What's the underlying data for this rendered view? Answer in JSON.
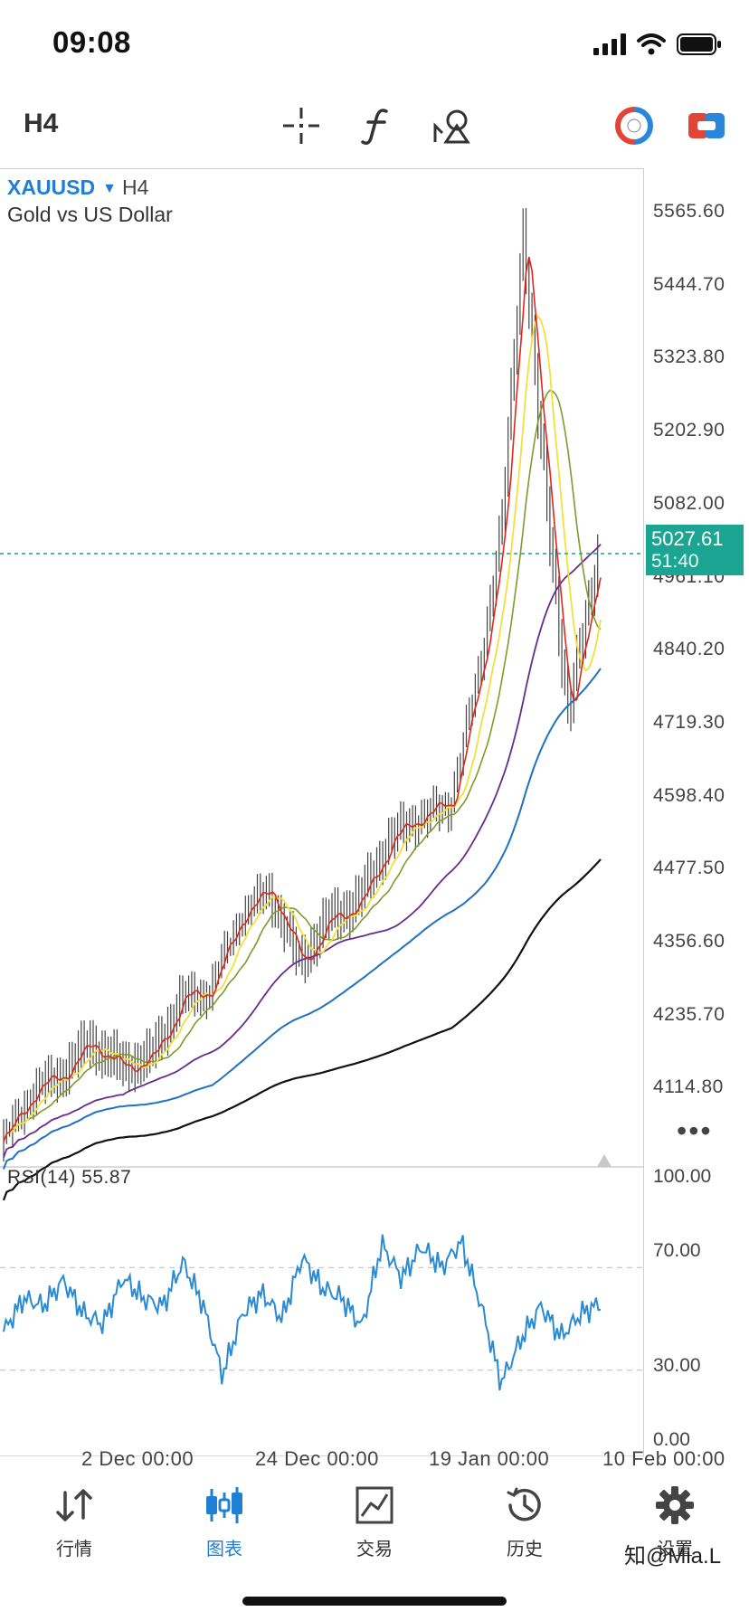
{
  "status_bar": {
    "time": "09:08",
    "icons": [
      "cellular-signal-icon",
      "wifi-icon",
      "battery-icon"
    ]
  },
  "toolbar": {
    "timeframe": "H4",
    "tools": [
      "crosshair-icon",
      "indicator-function-icon",
      "drawing-objects-icon"
    ],
    "right": [
      "one-click-trading-icon",
      "account-switch-icon"
    ]
  },
  "chart": {
    "symbol": "XAUUSD",
    "timeframe": "H4",
    "description": "Gold vs US Dollar",
    "price_axis": [
      "5565.60",
      "5444.70",
      "5323.80",
      "5202.90",
      "5082.00",
      "4961.10",
      "4840.20",
      "4719.30",
      "4598.40",
      "4477.50",
      "4356.60",
      "4235.70",
      "4114.80"
    ],
    "current_price": "5027.61",
    "bar_timer": "51:40",
    "more_label": "•••",
    "rsi": {
      "label": "RSI(14)",
      "value": "55.87",
      "ticks": [
        "100.00",
        "70.00",
        "30.00",
        "0.00"
      ],
      "levels": [
        70,
        30
      ]
    },
    "time_axis": [
      "2 Dec 00:00",
      "24 Dec 00:00",
      "19 Jan 00:00",
      "10 Feb 00:00"
    ],
    "colors": {
      "candle": "#444444",
      "ma_fast": "#e0261b",
      "ma_yellow": "#f2e03a",
      "ma_olive": "#7d9c2a",
      "ma_purple": "#6a2a8c",
      "ma_blue": "#1f72c0",
      "ma_black": "#111111",
      "rsi": "#2a8ad4",
      "current_line": "#1ca592"
    }
  },
  "chart_data": {
    "type": "line",
    "title": "",
    "ylabel": "",
    "ylim": [
      4050,
      5640
    ],
    "x": [
      0,
      10,
      20,
      30,
      40,
      50,
      60,
      70,
      80,
      90,
      100,
      110,
      120,
      130,
      140,
      150,
      160,
      168,
      175,
      180,
      190,
      200
    ],
    "series": [
      {
        "name": "",
        "values": [
          4070,
          4150,
          4180,
          4230,
          4190,
          4205,
          4300,
          4320,
          4440,
          4480,
          4360,
          4430,
          4460,
          4560,
          4600,
          4620,
          4830,
          5080,
          5560,
          5250,
          4760,
          5027
        ]
      }
    ],
    "rsi_ylim": [
      0,
      100
    ],
    "rsi_values": [
      45,
      58,
      55,
      65,
      52,
      48,
      66,
      58,
      55,
      72,
      56,
      28,
      52,
      60,
      50,
      74,
      62,
      58,
      47,
      79,
      66,
      78,
      70,
      80,
      55,
      25,
      42,
      55,
      43,
      52,
      56
    ]
  },
  "tabs": [
    {
      "label": "行情",
      "icon": "quotes-arrows-icon"
    },
    {
      "label": "图表",
      "icon": "chart-candles-icon",
      "active": true
    },
    {
      "label": "交易",
      "icon": "trade-line-icon"
    },
    {
      "label": "历史",
      "icon": "history-clock-icon"
    },
    {
      "label": "设置",
      "icon": "settings-gear-icon"
    }
  ],
  "watermark": "知@Mia.L"
}
